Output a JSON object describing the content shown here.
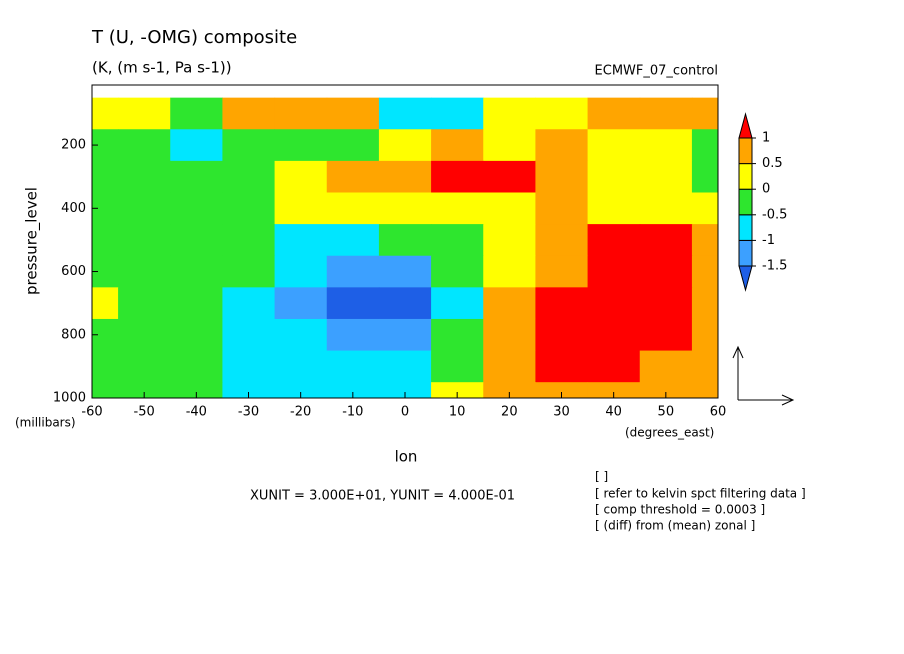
{
  "chart_data": {
    "type": "contour",
    "title": "T (U, -OMG) composite",
    "subtitle": "(K, (m s-1, Pa s-1))",
    "dataset": "ECMWF_07_control",
    "x_label": "lon",
    "x_units": "(degrees_east)",
    "y_label": "pressure_level",
    "y_units": "(millibars)",
    "vector_units": "XUNIT = 3.000E+01, YUNIT = 4.000E-01",
    "notes": [
      "[ ]",
      "[ refer to kelvin spct filtering data ]",
      "[ comp threshold = 0.0003 ]",
      "[ (diff) from (mean) zonal ]"
    ],
    "x": [
      -60,
      -50,
      -40,
      -30,
      -20,
      -10,
      0,
      10,
      20,
      30,
      40,
      50,
      60
    ],
    "y": [
      100,
      200,
      300,
      400,
      500,
      600,
      700,
      800,
      900,
      1000
    ],
    "z": [
      [
        0.3,
        0.2,
        -0.3,
        0.6,
        0.7,
        0.8,
        -0.6,
        -0.7,
        0.2,
        0.3,
        0.6,
        0.7,
        0.6
      ],
      [
        -0.3,
        -0.4,
        -0.6,
        -0.4,
        -0.3,
        -0.1,
        0.3,
        0.8,
        0.3,
        0.6,
        0.4,
        0.3,
        -0.2
      ],
      [
        -0.3,
        -0.3,
        -0.3,
        -0.2,
        0.2,
        0.6,
        0.8,
        1.2,
        1.1,
        0.7,
        0.3,
        0.2,
        -0.2
      ],
      [
        -0.2,
        -0.3,
        -0.3,
        -0.3,
        0.1,
        0.3,
        0.2,
        0.3,
        0.2,
        0.6,
        0.4,
        0.3,
        0.1
      ],
      [
        -0.3,
        -0.3,
        -0.4,
        -0.4,
        -0.6,
        -0.7,
        -0.5,
        -0.2,
        0.3,
        0.6,
        1.1,
        1.2,
        0.7
      ],
      [
        -0.2,
        -0.3,
        -0.3,
        -0.5,
        -0.9,
        -1.2,
        -1.1,
        -0.4,
        0.4,
        0.8,
        1.2,
        1.3,
        0.8
      ],
      [
        0.2,
        -0.2,
        -0.3,
        -0.6,
        -1.1,
        -1.6,
        -1.7,
        -0.6,
        0.5,
        1.1,
        1.3,
        1.2,
        0.8
      ],
      [
        -0.1,
        -0.2,
        -0.3,
        -0.6,
        -0.8,
        -1.1,
        -1.1,
        -0.4,
        0.6,
        1.1,
        1.2,
        1.1,
        0.6
      ],
      [
        -0.2,
        -0.2,
        -0.3,
        -0.6,
        -0.7,
        -0.8,
        -0.6,
        -0.1,
        0.7,
        1.0,
        1.0,
        0.8,
        0.6
      ],
      [
        -0.2,
        -0.2,
        -0.3,
        -0.6,
        -0.7,
        -0.7,
        -0.6,
        0.1,
        0.6,
        0.7,
        0.8,
        0.6,
        0.5
      ]
    ],
    "xlim": [
      -60,
      60
    ],
    "xticks": [
      -60,
      -50,
      -40,
      -30,
      -20,
      -10,
      0,
      10,
      20,
      30,
      40,
      50,
      60
    ],
    "ylim": [
      10,
      1000
    ],
    "yticks": [
      200,
      400,
      600,
      800,
      1000
    ],
    "y_inverted": true,
    "levels": [
      -1.5,
      -1,
      -0.5,
      0,
      0.5,
      1
    ],
    "colors": [
      "#1e5fe6",
      "#3ca0ff",
      "#00e6ff",
      "#2ee62e",
      "#ffff00",
      "#ffa500",
      "#ff0000"
    ]
  }
}
